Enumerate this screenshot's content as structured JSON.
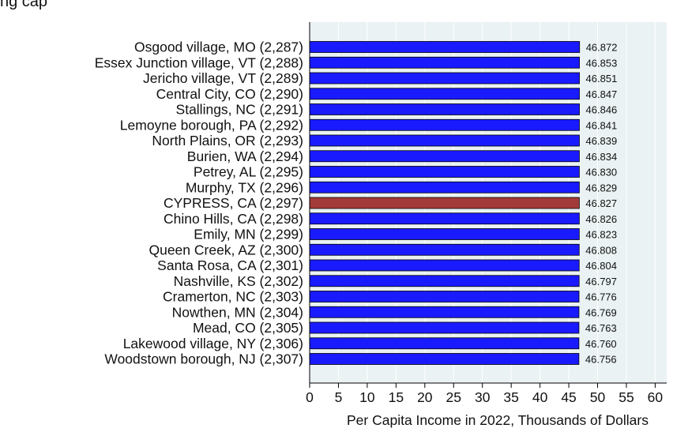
{
  "header_fragment": "ng    cap",
  "chart_data": {
    "type": "bar",
    "orientation": "horizontal",
    "title": "",
    "xlabel": "Per Capita Income in 2022, Thousands of Dollars",
    "ylabel": "",
    "xlim": [
      0,
      62
    ],
    "xticks": [
      0,
      5,
      10,
      15,
      20,
      25,
      30,
      35,
      40,
      45,
      50,
      55,
      60
    ],
    "grid": true,
    "categories": [
      "Osgood village, MO (2,287)",
      "Essex Junction village, VT (2,288)",
      "Jericho village, VT (2,289)",
      "Central City, CO (2,290)",
      "Stallings, NC (2,291)",
      "Lemoyne borough, PA (2,292)",
      "North Plains, OR (2,293)",
      "Burien, WA (2,294)",
      "Petrey, AL (2,295)",
      "Murphy, TX (2,296)",
      "CYPRESS, CA (2,297)",
      "Chino Hills, CA (2,298)",
      "Emily, MN (2,299)",
      "Queen Creek, AZ (2,300)",
      "Santa Rosa, CA (2,301)",
      "Nashville, KS (2,302)",
      "Cramerton, NC (2,303)",
      "Nowthen, MN (2,304)",
      "Mead, CO (2,305)",
      "Lakewood village, NY (2,306)",
      "Woodstown borough, NJ (2,307)"
    ],
    "values": [
      46.872,
      46.853,
      46.851,
      46.847,
      46.846,
      46.841,
      46.839,
      46.834,
      46.83,
      46.829,
      46.827,
      46.826,
      46.823,
      46.808,
      46.804,
      46.797,
      46.776,
      46.769,
      46.763,
      46.76,
      46.756
    ],
    "value_labels": [
      "46.872",
      "46.853",
      "46.851",
      "46.847",
      "46.846",
      "46.841",
      "46.839",
      "46.834",
      "46.830",
      "46.829",
      "46.827",
      "46.826",
      "46.823",
      "46.808",
      "46.804",
      "46.797",
      "46.776",
      "46.769",
      "46.763",
      "46.760",
      "46.756"
    ],
    "highlight_index": 10,
    "colors": {
      "bar": "#1a1aff",
      "highlight": "#a33a3a",
      "plot_background": "#eaf2f3",
      "grid": "#ffffff",
      "axis": "#000000"
    }
  }
}
